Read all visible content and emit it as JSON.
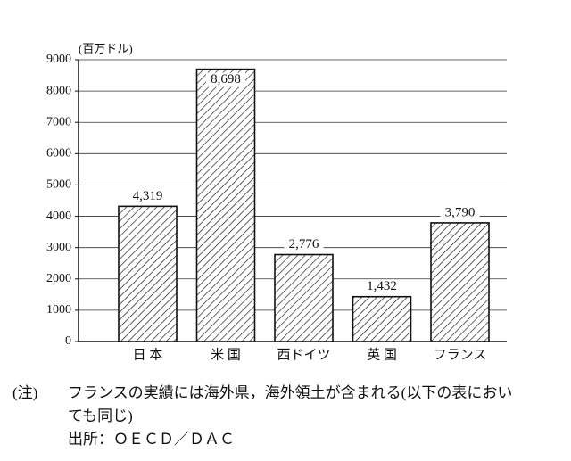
{
  "chart_data": {
    "type": "bar",
    "unit": "(百万ドル)",
    "categories": [
      "日 本",
      "米 国",
      "西ドイツ",
      "英 国",
      "フランス"
    ],
    "values": [
      4319,
      8698,
      2776,
      1432,
      3790
    ],
    "value_labels": [
      "4,319",
      "8,698",
      "2,776",
      "1,432",
      "3,790"
    ],
    "ylim": [
      0,
      9000
    ],
    "yticks": [
      0,
      1000,
      2000,
      3000,
      4000,
      5000,
      6000,
      7000,
      8000,
      9000
    ],
    "grid": true,
    "color": "#111111"
  },
  "note": {
    "marker": "(注)",
    "lines": [
      "フランスの実績には海外県，海外領土が含まれる(以下の表におい",
      "ても同じ)"
    ],
    "source": "出所：ＯＥＣＤ／ＤＡＣ"
  }
}
